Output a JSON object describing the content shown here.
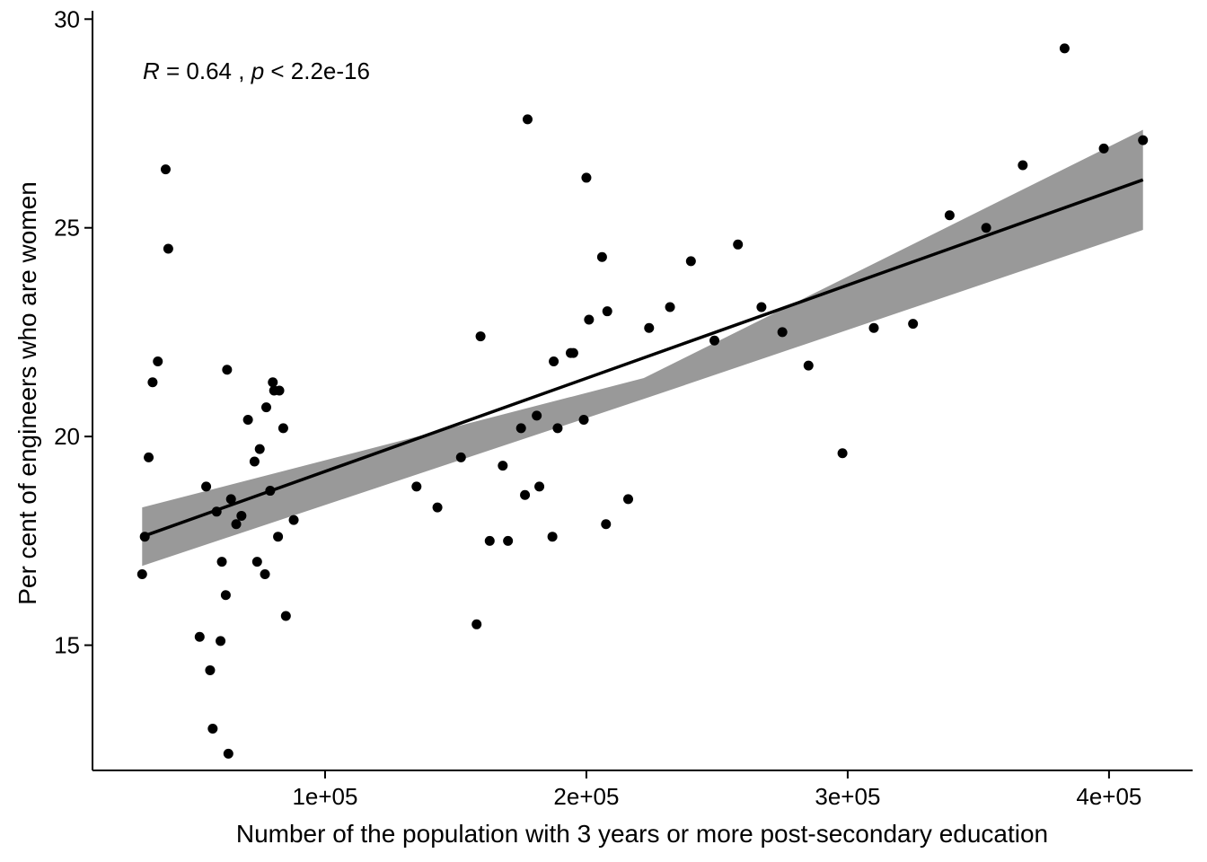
{
  "chart_data": {
    "type": "scatter",
    "title": "",
    "xlabel": "Number of the population with 3 years or more post-secondary education",
    "ylabel": "Per cent of engineers who are women",
    "xlim": [
      11000,
      432000
    ],
    "ylim": [
      12.0,
      30.2
    ],
    "x_ticks": [
      100000,
      200000,
      300000,
      400000
    ],
    "x_tick_labels": [
      "1e+05",
      "2e+05",
      "3e+05",
      "4e+05"
    ],
    "y_ticks": [
      15,
      20,
      25,
      30
    ],
    "y_tick_labels": [
      "15",
      "20",
      "25",
      "30"
    ],
    "grid": false,
    "annotation": {
      "r_symbol": "R",
      "r_text": " = 0.64 , ",
      "p_symbol": "p",
      "p_text": " < 2.2e-16"
    },
    "colors": {
      "points": "#000000",
      "line": "#000000",
      "band": "#999999"
    },
    "trend": {
      "x": [
        30000,
        413000
      ],
      "y": [
        17.6,
        26.15
      ],
      "band_upper": [
        18.3,
        27.35
      ],
      "band_lower": [
        16.9,
        24.95
      ],
      "band_mid": [
        30000,
        222000,
        413000
      ],
      "band_mid_upper": [
        18.3,
        21.4,
        27.35
      ],
      "band_mid_lower": [
        16.9,
        20.9,
        24.95
      ]
    },
    "points": {
      "x": [
        30000,
        31000,
        32500,
        34000,
        36000,
        39000,
        40000,
        52000,
        54500,
        56000,
        57000,
        58500,
        60000,
        60500,
        62000,
        62500,
        63000,
        64000,
        66000,
        68000,
        70500,
        73000,
        74000,
        75000,
        77000,
        77500,
        79000,
        80000,
        80500,
        82000,
        82500,
        84000,
        85000,
        88000,
        135000,
        143000,
        152000,
        158000,
        159500,
        163000,
        168000,
        170000,
        175000,
        176500,
        177500,
        181000,
        182000,
        187000,
        187500,
        189000,
        194000,
        195000,
        199000,
        200000,
        201000,
        206000,
        207500,
        208000,
        216000,
        224000,
        232000,
        240000,
        249000,
        258000,
        267000,
        275000,
        285000,
        298000,
        310000,
        325000,
        339000,
        353000,
        367000,
        383000,
        398000,
        413000
      ],
      "y": [
        16.7,
        17.6,
        19.5,
        21.3,
        21.8,
        26.4,
        24.5,
        15.2,
        18.8,
        14.4,
        13.0,
        18.2,
        15.1,
        17.0,
        16.2,
        21.6,
        12.4,
        18.5,
        17.9,
        18.1,
        20.4,
        19.4,
        17.0,
        19.7,
        16.7,
        20.7,
        18.7,
        21.3,
        21.1,
        17.6,
        21.1,
        20.2,
        15.7,
        18.0,
        18.8,
        18.3,
        19.5,
        15.5,
        22.4,
        17.5,
        19.3,
        17.5,
        20.2,
        18.6,
        27.6,
        20.5,
        18.8,
        17.6,
        21.8,
        20.2,
        22.0,
        22.0,
        20.4,
        26.2,
        22.8,
        24.3,
        17.9,
        23.0,
        18.5,
        22.6,
        23.1,
        24.2,
        22.3,
        24.6,
        23.1,
        22.5,
        21.7,
        19.6,
        22.6,
        22.7,
        25.3,
        25.0,
        26.5,
        29.3,
        26.9,
        27.1
      ]
    }
  }
}
